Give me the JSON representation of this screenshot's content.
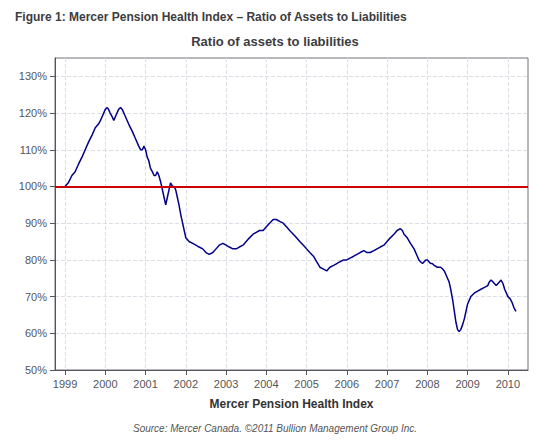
{
  "chart_data": {
    "type": "line",
    "title": "Figure 1: Mercer Pension Health Index – Ratio of Assets to Liabilities",
    "subtitle": "Ratio of assets to liabilities",
    "xlabel": "Mercer Pension Health Index",
    "annotations": [
      "Source: Mercer Canada. ©2011 Bullion Management Group Inc."
    ],
    "color": "#00008B",
    "grid": true,
    "xlim": [
      1998.75,
      2010.5
    ],
    "xticks": [
      1999,
      2000,
      2001,
      2002,
      2003,
      2004,
      2005,
      2006,
      2007,
      2008,
      2009,
      2010
    ],
    "ylim": [
      50,
      135
    ],
    "yticks": [
      {
        "value": 50,
        "label": "50%"
      },
      {
        "value": 60,
        "label": "60%"
      },
      {
        "value": 70,
        "label": "70%"
      },
      {
        "value": 80,
        "label": "80%"
      },
      {
        "value": 90,
        "label": "90%"
      },
      {
        "value": 100,
        "label": "100%"
      },
      {
        "value": 110,
        "label": "110%"
      },
      {
        "value": 120,
        "label": "120%"
      },
      {
        "value": 130,
        "label": "130%"
      }
    ],
    "reference_line": {
      "y": 100,
      "color": "#CC0000"
    },
    "x": [
      1999.0,
      1999.08,
      1999.17,
      1999.25,
      1999.33,
      1999.42,
      1999.5,
      1999.58,
      1999.67,
      1999.75,
      1999.83,
      1999.88,
      1999.92,
      2000.0,
      2000.05,
      2000.08,
      2000.12,
      2000.17,
      2000.21,
      2000.25,
      2000.29,
      2000.33,
      2000.38,
      2000.42,
      2000.5,
      2000.58,
      2000.67,
      2000.75,
      2000.83,
      2000.88,
      2000.92,
      2000.96,
      2001.0,
      2001.04,
      2001.08,
      2001.12,
      2001.17,
      2001.21,
      2001.25,
      2001.29,
      2001.33,
      2001.38,
      2001.42,
      2001.46,
      2001.5,
      2001.54,
      2001.58,
      2001.62,
      2001.67,
      2001.71,
      2001.75,
      2001.79,
      2001.83,
      2001.88,
      2001.92,
      2001.96,
      2002.0,
      2002.08,
      2002.17,
      2002.25,
      2002.33,
      2002.42,
      2002.5,
      2002.58,
      2002.67,
      2002.75,
      2002.83,
      2002.92,
      2003.0,
      2003.08,
      2003.17,
      2003.25,
      2003.33,
      2003.42,
      2003.5,
      2003.58,
      2003.67,
      2003.75,
      2003.83,
      2003.92,
      2004.0,
      2004.08,
      2004.17,
      2004.25,
      2004.33,
      2004.42,
      2004.5,
      2004.58,
      2004.67,
      2004.75,
      2004.83,
      2004.92,
      2005.0,
      2005.08,
      2005.17,
      2005.25,
      2005.33,
      2005.42,
      2005.5,
      2005.54,
      2005.58,
      2005.67,
      2005.75,
      2005.83,
      2005.92,
      2006.0,
      2006.08,
      2006.17,
      2006.25,
      2006.33,
      2006.42,
      2006.5,
      2006.58,
      2006.67,
      2006.75,
      2006.83,
      2006.92,
      2007.0,
      2007.08,
      2007.17,
      2007.25,
      2007.33,
      2007.38,
      2007.42,
      2007.5,
      2007.58,
      2007.67,
      2007.75,
      2007.79,
      2007.83,
      2007.88,
      2007.92,
      2007.96,
      2008.0,
      2008.04,
      2008.08,
      2008.12,
      2008.17,
      2008.25,
      2008.33,
      2008.38,
      2008.42,
      2008.46,
      2008.5,
      2008.54,
      2008.58,
      2008.63,
      2008.67,
      2008.71,
      2008.75,
      2008.79,
      2008.83,
      2008.88,
      2008.92,
      2008.96,
      2009.0,
      2009.08,
      2009.17,
      2009.25,
      2009.33,
      2009.42,
      2009.5,
      2009.54,
      2009.58,
      2009.63,
      2009.67,
      2009.71,
      2009.75,
      2009.79,
      2009.83,
      2009.88,
      2009.92,
      2009.96,
      2010.0,
      2010.05,
      2010.1,
      2010.15,
      2010.2
    ],
    "values": [
      100,
      101,
      103,
      104,
      106,
      108,
      110,
      112,
      114,
      116,
      117,
      118,
      119,
      121,
      121.5,
      121,
      120,
      119,
      118,
      119,
      120,
      121,
      121.5,
      121,
      119,
      117,
      115,
      113,
      111,
      110,
      110,
      111,
      110,
      108,
      107,
      105,
      104,
      103,
      103,
      104,
      103,
      101,
      99,
      97,
      95,
      97,
      99,
      101,
      100,
      100,
      99,
      97,
      95,
      92,
      90,
      88,
      86,
      85,
      84.5,
      84,
      83.5,
      83,
      82,
      81.5,
      82,
      83,
      84,
      84.5,
      84,
      83.5,
      83,
      83,
      83.5,
      84,
      85,
      86,
      87,
      87.5,
      88,
      88,
      89,
      90,
      91,
      91,
      90.5,
      90,
      89,
      88,
      87,
      86,
      85,
      84,
      83,
      82,
      81,
      79.5,
      78,
      77.5,
      77,
      77.5,
      78,
      78.5,
      79,
      79.5,
      80,
      80,
      80.5,
      81,
      81.5,
      82,
      82.5,
      82,
      82,
      82.5,
      83,
      83.5,
      84,
      85,
      86,
      87,
      88,
      88.5,
      88,
      87,
      86,
      84.5,
      83,
      81,
      80,
      79.5,
      79,
      79.5,
      80,
      80,
      79.5,
      79,
      79,
      78.5,
      78,
      78,
      77.5,
      77,
      76,
      75,
      74,
      72,
      69,
      66,
      63,
      61,
      60.5,
      61,
      62.5,
      64,
      66,
      68,
      70,
      71,
      71.5,
      72,
      72.5,
      73,
      74,
      74.5,
      74,
      73.5,
      73,
      73.5,
      74,
      74.5,
      73.5,
      72,
      71,
      70,
      69.5,
      68.5,
      67,
      66
    ]
  }
}
